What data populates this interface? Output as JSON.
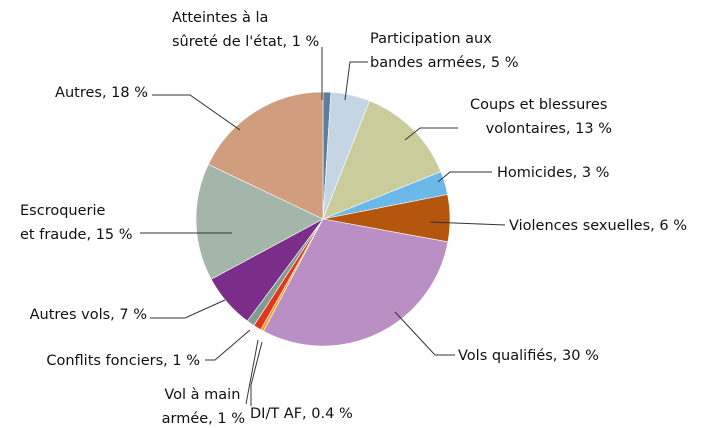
{
  "chart_data": {
    "type": "pie",
    "categories": [
      "Atteintes à la sûreté de l'état, 1 %",
      "Participation aux bandes armées, 5 %",
      "Coups et blessures volontaires, 13 %",
      "Homicides, 3 %",
      "Violences sexuelles, 6 %",
      "Vols qualifiés, 30 %",
      "DI/T AF, 0.4 %",
      "Vol à main armée, 1 %",
      "Conflits fonciers, 1 %",
      "Autres vols, 7 %",
      "Escroquerie et fraude, 15 %",
      "Autres, 18 %"
    ],
    "values": [
      1,
      5,
      13,
      3,
      6,
      30,
      0.4,
      1,
      1,
      7,
      15,
      18
    ],
    "colors": [
      "#5a7fa3",
      "#c6d5e4",
      "#cacc9c",
      "#6cb8e8",
      "#b5560f",
      "#b98fc4",
      "#f2a51f",
      "#e0351e",
      "#7f9c8c",
      "#7a2e8a",
      "#a4b6aa",
      "#d09d7e"
    ]
  }
}
